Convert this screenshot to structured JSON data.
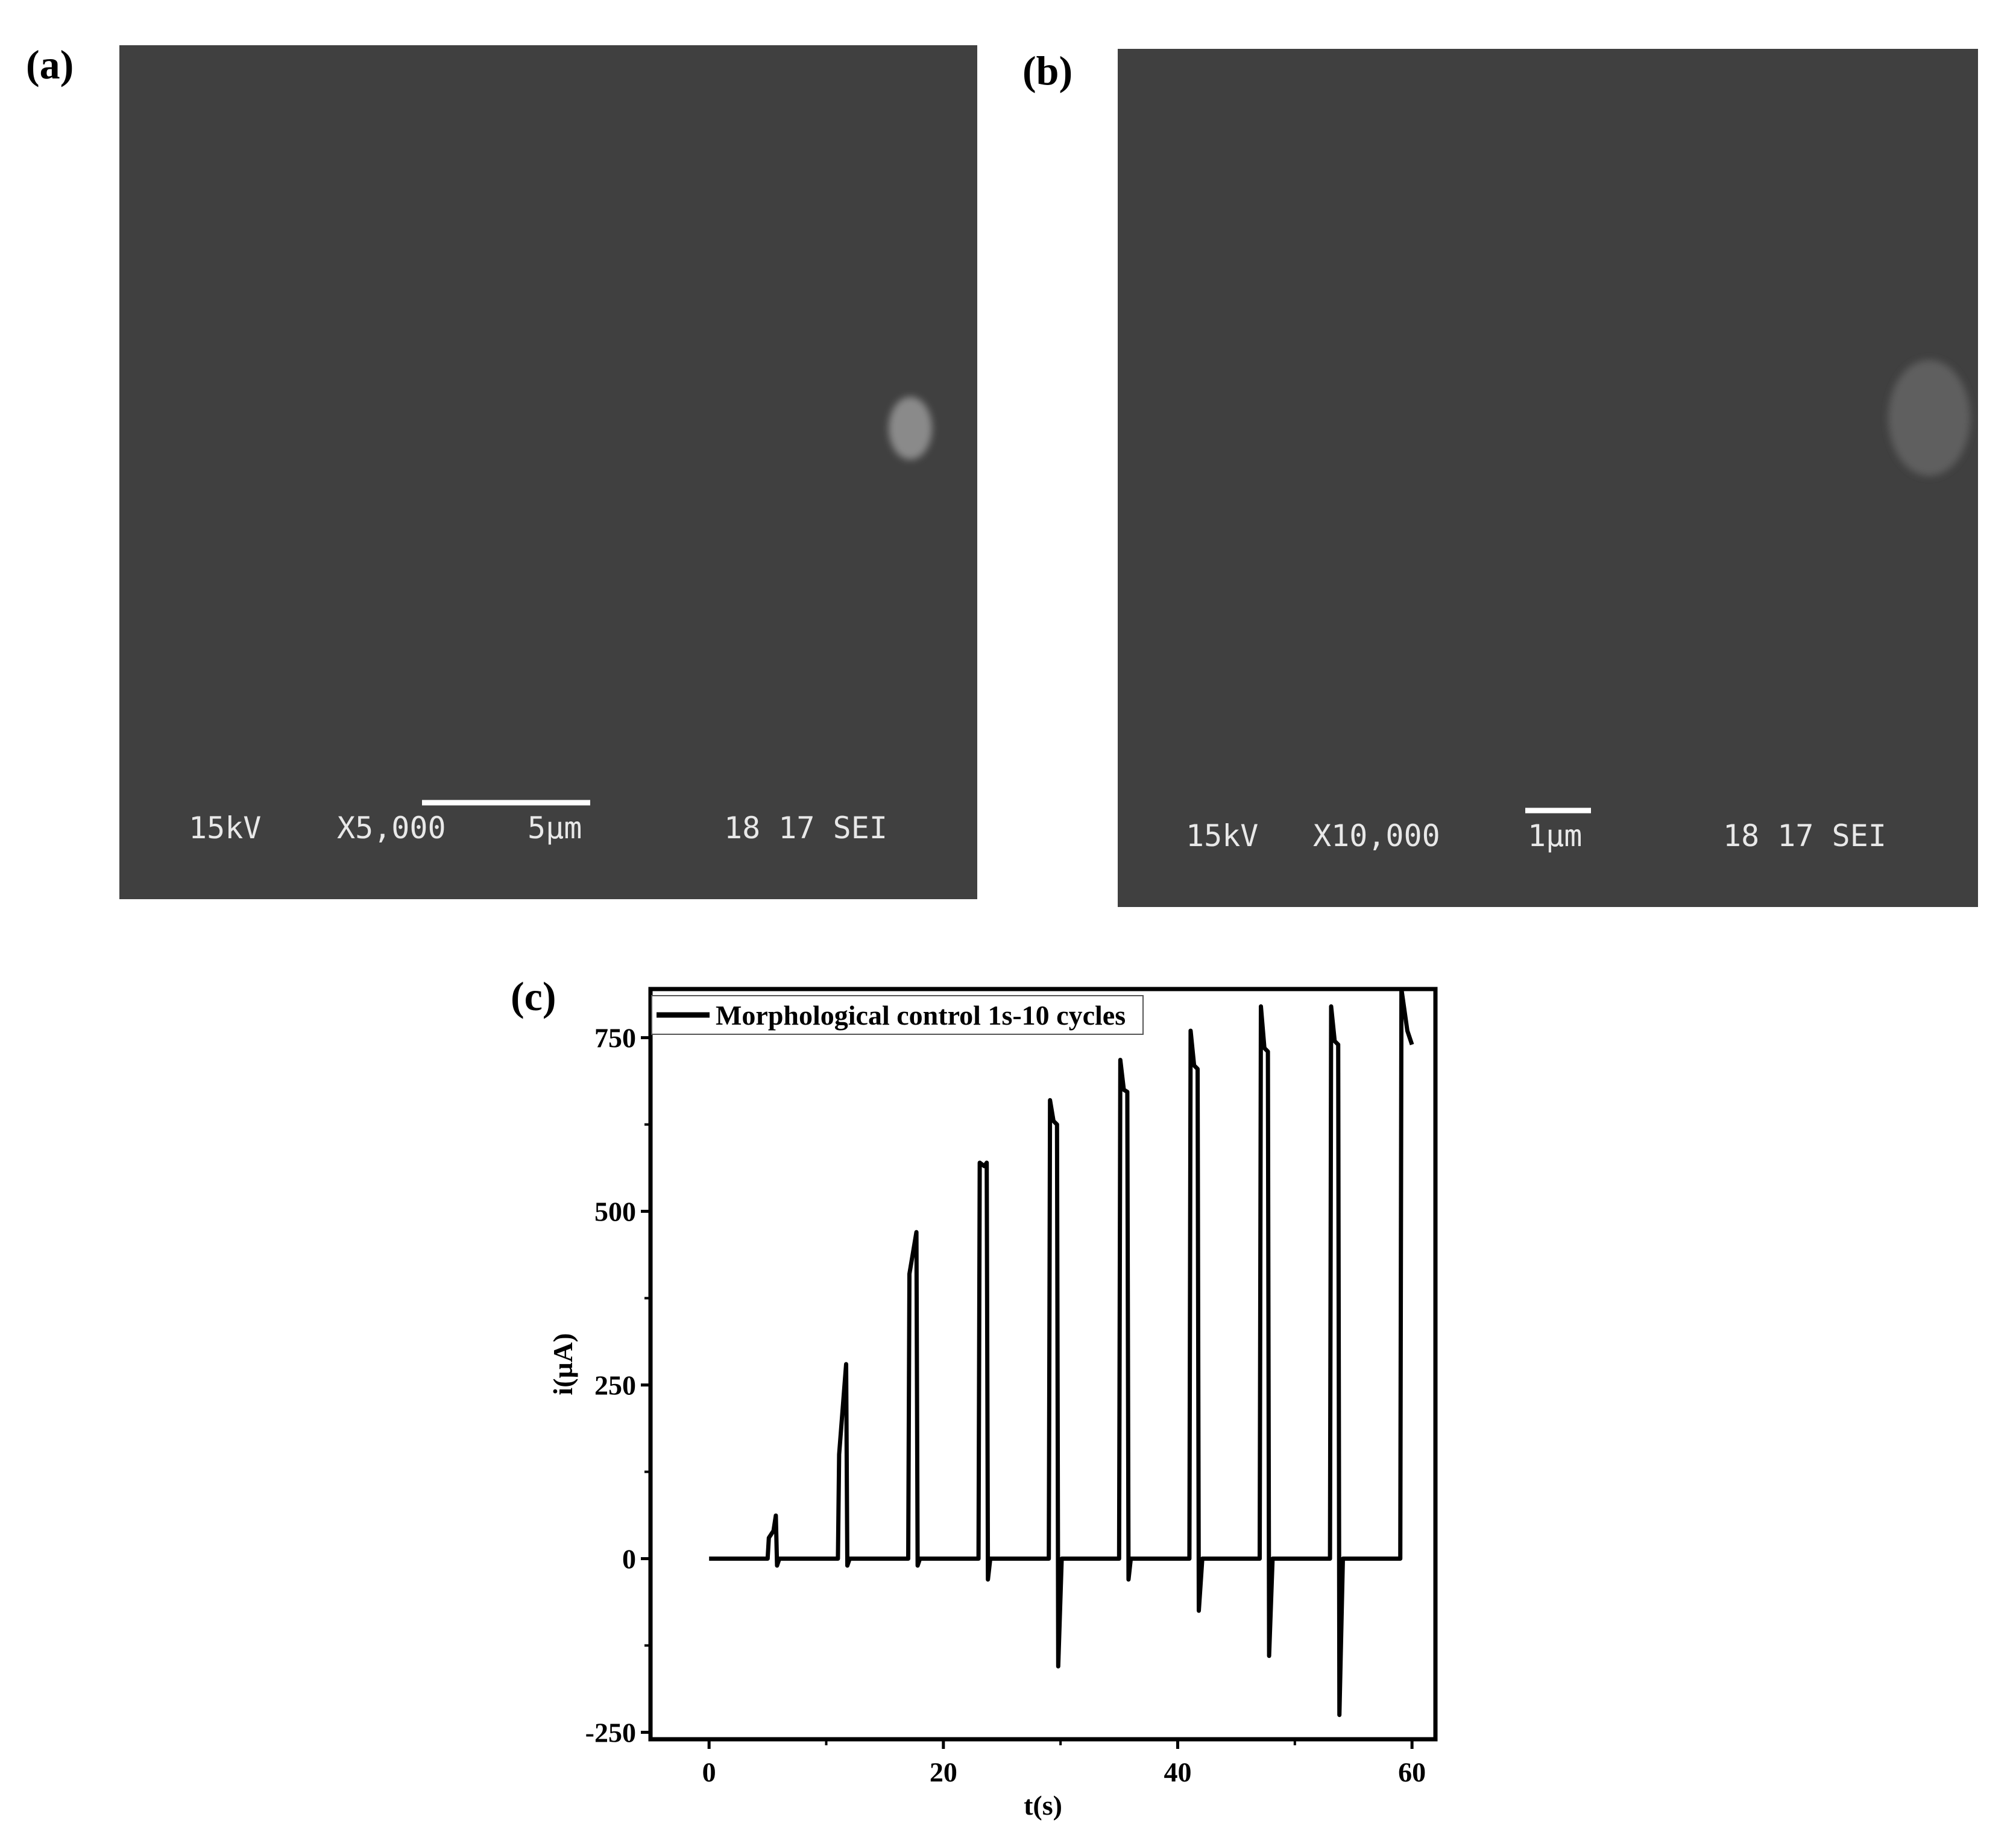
{
  "panels": {
    "a": {
      "label": "(a)",
      "voltage": "15kV",
      "magnification": "X5,000",
      "scale": "5µm",
      "info": "18 17 SEI"
    },
    "b": {
      "label": "(b)",
      "voltage": "15kV",
      "magnification": "X10,000",
      "scale": "1µm",
      "info": "18 17 SEI"
    },
    "c": {
      "label": "(c)"
    }
  },
  "chart_data": {
    "type": "line",
    "x_label": "t(s)",
    "y_label": "i(µA)",
    "xlim": [
      -5,
      62
    ],
    "xticks": [
      0,
      20,
      40,
      60
    ],
    "xminorticks": [
      10,
      30,
      50
    ],
    "ylim": [
      -260,
      820
    ],
    "yticks": [
      -250,
      0,
      250,
      500,
      750
    ],
    "yminorticks": [
      -125,
      125,
      375,
      625
    ],
    "legend": "top-left",
    "x": [
      0,
      5.0,
      5.1,
      5.5,
      5.7,
      5.8,
      6.0,
      11.0,
      11.1,
      11.7,
      11.8,
      12.0,
      17.0,
      17.1,
      17.7,
      17.8,
      18.0,
      23.0,
      23.1,
      23.5,
      23.7,
      23.8,
      24.0,
      29.0,
      29.1,
      29.4,
      29.7,
      29.8,
      30.1,
      35.0,
      35.1,
      35.4,
      35.7,
      35.8,
      36.0,
      41.0,
      41.1,
      41.4,
      41.7,
      41.8,
      42.1,
      47.0,
      47.1,
      47.4,
      47.7,
      47.8,
      48.1,
      53.0,
      53.1,
      53.4,
      53.7,
      53.8,
      54.1,
      59.0,
      59.1,
      59.6,
      60.0
    ],
    "series": [
      {
        "name": "Morphological control 1s-10 cycles",
        "color": "#000000",
        "values": [
          0,
          0,
          30,
          40,
          62,
          -10,
          0,
          0,
          150,
          280,
          -10,
          0,
          0,
          410,
          470,
          -10,
          0,
          0,
          570,
          565,
          570,
          -30,
          0,
          0,
          660,
          630,
          625,
          -155,
          0,
          0,
          718,
          675,
          672,
          -30,
          0,
          0,
          760,
          710,
          705,
          -75,
          0,
          0,
          795,
          735,
          730,
          -140,
          0,
          0,
          795,
          745,
          740,
          -225,
          0,
          0,
          820,
          760,
          740
        ]
      }
    ]
  }
}
